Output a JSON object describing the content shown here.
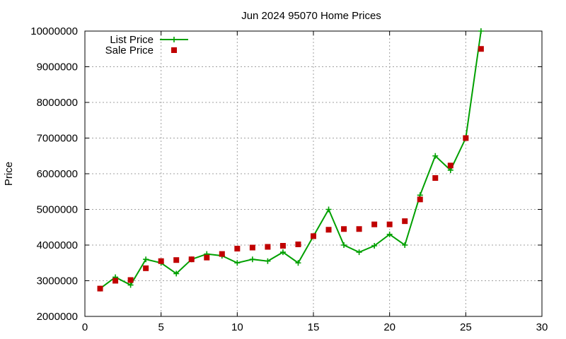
{
  "chart_data": {
    "type": "line",
    "title": "Jun 2024 95070 Home Prices",
    "xlabel": "",
    "ylabel": "Price",
    "xlim": [
      0,
      30
    ],
    "ylim": [
      2000000,
      10000000
    ],
    "x_ticks": [
      0,
      5,
      10,
      15,
      20,
      25,
      30
    ],
    "y_ticks": [
      2000000,
      3000000,
      4000000,
      5000000,
      6000000,
      7000000,
      8000000,
      9000000,
      10000000
    ],
    "x_tick_labels": [
      "0",
      "5",
      "10",
      "15",
      "20",
      "25",
      "30"
    ],
    "y_tick_labels": [
      "2000000",
      "3000000",
      "4000000",
      "5000000",
      "6000000",
      "7000000",
      "8000000",
      "9000000",
      "10000000"
    ],
    "grid": true,
    "legend_position": "top-left",
    "series": [
      {
        "name": "List Price",
        "style": "line-with-plus-markers",
        "color": "#00a000",
        "x": [
          1,
          2,
          3,
          4,
          5,
          6,
          7,
          8,
          9,
          10,
          11,
          12,
          13,
          14,
          15,
          16,
          17,
          18,
          19,
          20,
          21,
          22,
          23,
          24,
          25,
          26
        ],
        "y": [
          2780000,
          3100000,
          2880000,
          3600000,
          3500000,
          3200000,
          3600000,
          3750000,
          3700000,
          3500000,
          3600000,
          3550000,
          3800000,
          3500000,
          4250000,
          5000000,
          4000000,
          3800000,
          3980000,
          4300000,
          4000000,
          5400000,
          6500000,
          6100000,
          7000000,
          10000000
        ]
      },
      {
        "name": "Sale Price",
        "style": "square-points",
        "color": "#c00000",
        "x": [
          1,
          2,
          3,
          4,
          5,
          6,
          7,
          8,
          9,
          10,
          11,
          12,
          13,
          14,
          15,
          16,
          17,
          18,
          19,
          20,
          21,
          22,
          23,
          24,
          25,
          26
        ],
        "y": [
          2780000,
          3000000,
          3020000,
          3350000,
          3550000,
          3580000,
          3600000,
          3650000,
          3750000,
          3900000,
          3930000,
          3950000,
          3980000,
          4020000,
          4250000,
          4430000,
          4450000,
          4450000,
          4580000,
          4580000,
          4670000,
          5280000,
          5880000,
          6230000,
          7000000,
          9500000
        ]
      }
    ]
  }
}
